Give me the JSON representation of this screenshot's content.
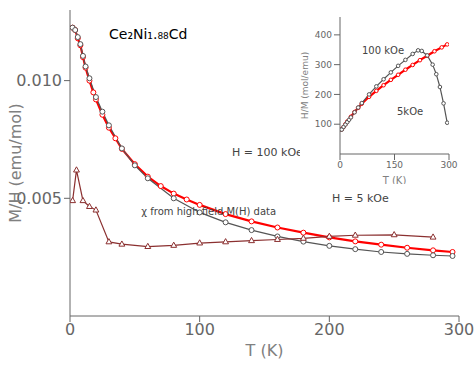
{
  "chart_data": [
    {
      "type": "line",
      "title": "Ce₂Ni₁.₈₈Cd",
      "x_label": "T (K)",
      "y_label": "M/H (emu/mol)",
      "xlim": [
        0,
        300
      ],
      "ylim": [
        0,
        0.013
      ],
      "xticks": [
        0,
        100,
        200,
        300
      ],
      "yticks": [
        0.005,
        {
          "value": 0.01,
          "label": "0.010"
        }
      ],
      "grid": false,
      "series": [
        {
          "color": "red",
          "marker": "circle",
          "line_style": "solid",
          "x": [
            2,
            4,
            6,
            8,
            10,
            12,
            15,
            18,
            20,
            25,
            30,
            35,
            40,
            50,
            60,
            70,
            80,
            90,
            100,
            120,
            140,
            160,
            180,
            200,
            220,
            240,
            260,
            280,
            295
          ],
          "values": [
            0.01225,
            0.01215,
            0.0118,
            0.0115,
            0.011,
            0.01055,
            0.01,
            0.0095,
            0.0092,
            0.00855,
            0.008,
            0.00755,
            0.0071,
            0.00645,
            0.00592,
            0.00552,
            0.0052,
            0.00495,
            0.00472,
            0.00433,
            0.00402,
            0.00376,
            0.00354,
            0.00334,
            0.00317,
            0.00303,
            0.0029,
            0.00279,
            0.00272
          ]
        },
        {
          "color": "#555555",
          "marker": "circle",
          "line_style": "solid",
          "x": [
            2,
            4,
            6,
            8,
            10,
            12,
            15,
            20,
            25,
            30,
            40,
            50,
            60,
            80,
            100,
            120,
            140,
            160,
            180,
            200,
            220,
            240,
            260,
            280,
            295
          ],
          "values": [
            0.01225,
            0.01215,
            0.01185,
            0.01155,
            0.01105,
            0.0106,
            0.0101,
            0.0093,
            0.00868,
            0.0081,
            0.00712,
            0.0064,
            0.00585,
            0.005,
            0.0044,
            0.00398,
            0.00365,
            0.00338,
            0.00316,
            0.00298,
            0.00284,
            0.00272,
            0.00264,
            0.00258,
            0.00255
          ]
        },
        {
          "color": "#8B3030",
          "marker": "triangle",
          "line_style": "solid",
          "x": [
            2,
            5,
            10,
            15,
            20,
            30,
            40,
            60,
            80,
            100,
            120,
            140,
            160,
            180,
            200,
            220,
            250,
            280
          ],
          "values": [
            0.0049,
            0.0062,
            0.0049,
            0.00465,
            0.0045,
            0.00315,
            0.00305,
            0.00295,
            0.003,
            0.0031,
            0.00315,
            0.0032,
            0.00325,
            0.0033,
            0.00338,
            0.00343,
            0.00345,
            0.00335
          ]
        }
      ],
      "annotations": [
        {
          "text": "H = 100 kOe",
          "x": 125,
          "y": 0.0068
        },
        {
          "text": "H = 5 kOe",
          "x": 202,
          "y": 0.00485
        },
        {
          "text": "χ from high field M(H) data",
          "x": 55,
          "y": 0.0043
        }
      ]
    },
    {
      "type": "line",
      "x_label": "T (K)",
      "y_label": "H/M (mol/emu)",
      "xlim": [
        0,
        300
      ],
      "ylim": [
        0,
        460
      ],
      "xticks": [
        0,
        150,
        300
      ],
      "yticks": [
        100,
        200,
        300,
        400
      ],
      "grid": false,
      "series": [
        {
          "color": "red",
          "marker": "circle",
          "line_style": "solid",
          "x": [
            2,
            5,
            10,
            15,
            20,
            30,
            40,
            50,
            60,
            80,
            100,
            120,
            140,
            160,
            180,
            200,
            220,
            240,
            260,
            280,
            295
          ],
          "values": [
            82,
            83,
            91,
            100,
            109,
            125,
            141,
            155,
            169,
            192,
            212,
            231,
            249,
            266,
            283,
            299,
            315,
            330,
            345,
            358,
            368
          ]
        },
        {
          "color": "#555555",
          "marker": "circle",
          "line_style": "solid",
          "x": [
            2,
            5,
            10,
            15,
            20,
            25,
            30,
            40,
            50,
            60,
            80,
            100,
            120,
            140,
            160,
            180,
            200,
            215,
            225,
            240,
            255,
            265,
            275,
            285,
            295
          ],
          "values": [
            82,
            82,
            91,
            99,
            107,
            115,
            123,
            140,
            156,
            171,
            200,
            227,
            251,
            274,
            296,
            316,
            336,
            348,
            346,
            331,
            300,
            268,
            225,
            170,
            105
          ]
        }
      ],
      "annotations": [
        {
          "text": "100 kOe"
        },
        {
          "text": "5kOe"
        }
      ]
    }
  ]
}
